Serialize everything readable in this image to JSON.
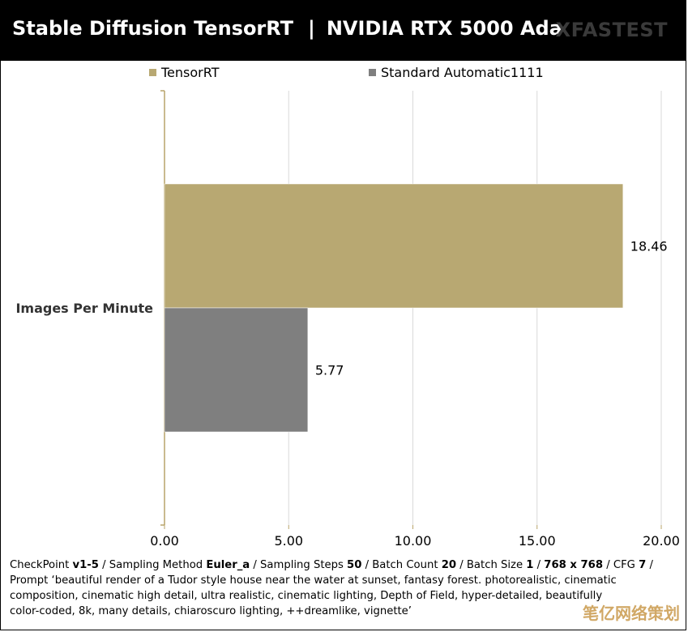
{
  "header": {
    "title_left": "Stable Diffusion TensorRT",
    "title_sep": "|",
    "title_right": "NVIDIA RTX 5000 Ada",
    "brand": "XFASTEST"
  },
  "colors": {
    "tensorrt": "#b8a872",
    "standard": "#7f7f7f",
    "axis": "#b9a46a",
    "grid": "#d9d9d9"
  },
  "chart_data": {
    "type": "bar",
    "orientation": "horizontal",
    "categories": [
      "Images Per Minute"
    ],
    "series": [
      {
        "name": "TensorRT",
        "values": [
          18.46
        ]
      },
      {
        "name": "Standard Automatic1111",
        "values": [
          5.77
        ]
      }
    ],
    "data_labels": [
      "18.46",
      "5.77"
    ],
    "xlim": [
      0,
      20
    ],
    "xticks": [
      "0.00",
      "5.00",
      "10.00",
      "15.00",
      "20.00"
    ],
    "grid": true,
    "legend_position": "top"
  },
  "footer": {
    "line1": [
      {
        "t": "CheckPoint ",
        "b": false
      },
      {
        "t": "v1-5",
        "b": true
      },
      {
        "t": " / Sampling Method ",
        "b": false
      },
      {
        "t": "Euler_a",
        "b": true
      },
      {
        "t": " / Sampling Steps ",
        "b": false
      },
      {
        "t": "50",
        "b": true
      },
      {
        "t": " / Batch Count ",
        "b": false
      },
      {
        "t": "20",
        "b": true
      },
      {
        "t": " / Batch Size ",
        "b": false
      },
      {
        "t": "1",
        "b": true
      },
      {
        "t": " / ",
        "b": false
      },
      {
        "t": "768 x 768",
        "b": true
      },
      {
        "t": " / CFG ",
        "b": false
      },
      {
        "t": "7",
        "b": true
      },
      {
        "t": " /",
        "b": false
      }
    ],
    "prompt_lines": [
      "Prompt ‘beautiful render of a Tudor style house near the water at sunset, fantasy forest. photorealistic, cinematic",
      "composition, cinematic high detail, ultra realistic, cinematic lighting, Depth of Field, hyper-detailed, beautifully",
      "color-coded, 8k, many details, chiaroscuro lighting, ++dreamlike, vignette’"
    ]
  },
  "watermark": "笔亿网络策划"
}
